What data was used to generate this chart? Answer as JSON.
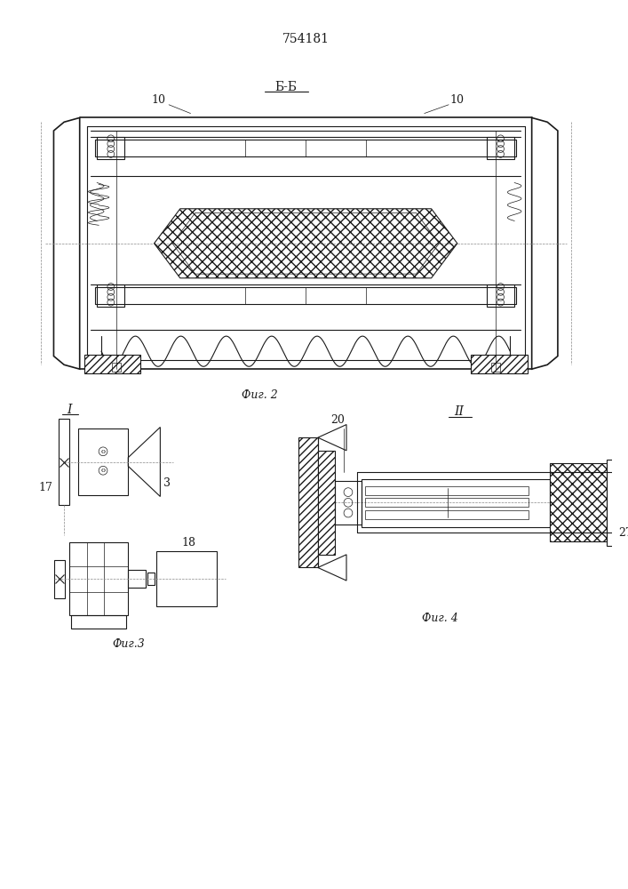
{
  "title": "754181",
  "bg_color": "#ffffff",
  "line_color": "#1a1a1a",
  "fig2_label": "Б-Б",
  "fig2_caption": "Фиг. 2",
  "fig3_caption": "Фиг.3",
  "fig4_caption": "Фиг. 4",
  "label_I": "I",
  "label_II": "II",
  "label_10a": "10",
  "label_10b": "10",
  "label_17": "17",
  "label_3": "3",
  "label_18": "18",
  "label_20": "20",
  "label_27": "27"
}
